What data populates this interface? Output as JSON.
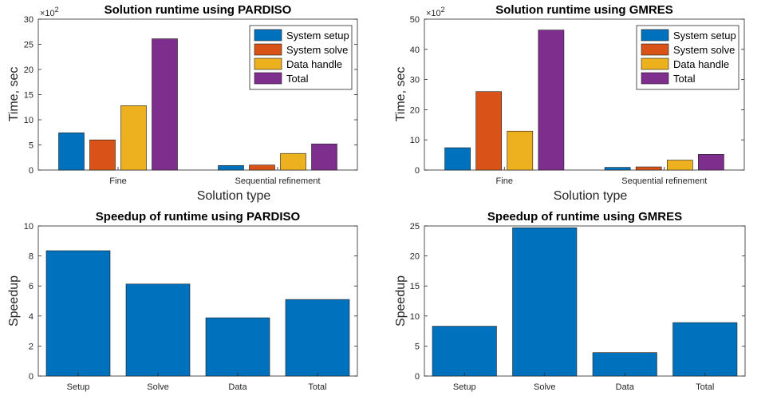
{
  "chart_data": [
    {
      "type": "bar",
      "title": "Solution runtime using PARDISO",
      "xlabel": "Solution type",
      "ylabel": "Time, sec",
      "y_multiplier": "×10",
      "y_multiplier_exp": "2",
      "ylim": [
        0,
        30
      ],
      "yticks": [
        "0",
        "5",
        "10",
        "15",
        "20",
        "25",
        "30"
      ],
      "grid": false,
      "legend_position": "top-right",
      "categories": [
        "Fine",
        "Sequential refinement"
      ],
      "series": [
        {
          "name": "System setup",
          "color": "#0072bd",
          "values": [
            7.4,
            0.9
          ]
        },
        {
          "name": "System solve",
          "color": "#d95319",
          "values": [
            6.0,
            1.0
          ]
        },
        {
          "name": "Data handle",
          "color": "#edb120",
          "values": [
            12.8,
            3.3
          ]
        },
        {
          "name": "Total",
          "color": "#7e2f8e",
          "values": [
            26.1,
            5.2
          ]
        }
      ]
    },
    {
      "type": "bar",
      "title": "Solution runtime using GMRES",
      "xlabel": "Solution type",
      "ylabel": "Time, sec",
      "y_multiplier": "×10",
      "y_multiplier_exp": "2",
      "ylim": [
        0,
        50
      ],
      "yticks": [
        "0",
        "10",
        "20",
        "30",
        "40",
        "50"
      ],
      "grid": false,
      "legend_position": "top-right",
      "categories": [
        "Fine",
        "Sequential refinement"
      ],
      "series": [
        {
          "name": "System setup",
          "color": "#0072bd",
          "values": [
            7.4,
            0.9
          ]
        },
        {
          "name": "System solve",
          "color": "#d95319",
          "values": [
            26.0,
            1.05
          ]
        },
        {
          "name": "Data handle",
          "color": "#edb120",
          "values": [
            12.9,
            3.3
          ]
        },
        {
          "name": "Total",
          "color": "#7e2f8e",
          "values": [
            46.4,
            5.2
          ]
        }
      ]
    },
    {
      "type": "bar",
      "title": "Speedup of runtime using PARDISO",
      "xlabel": "",
      "ylabel": "Speedup",
      "ylim": [
        0,
        10
      ],
      "yticks": [
        "0",
        "2",
        "4",
        "6",
        "8",
        "10"
      ],
      "grid": false,
      "categories": [
        "Setup",
        "Solve",
        "Data",
        "Total"
      ],
      "series": [
        {
          "name": "Speedup",
          "color": "#0072bd",
          "values": [
            8.35,
            6.13,
            3.88,
            5.1
          ]
        }
      ]
    },
    {
      "type": "bar",
      "title": "Speedup of runtime using GMRES",
      "xlabel": "",
      "ylabel": "Speedup",
      "ylim": [
        0,
        25
      ],
      "yticks": [
        "0",
        "5",
        "10",
        "15",
        "20",
        "25"
      ],
      "grid": false,
      "categories": [
        "Setup",
        "Solve",
        "Data",
        "Total"
      ],
      "series": [
        {
          "name": "Speedup",
          "color": "#0072bd",
          "values": [
            8.3,
            24.7,
            3.9,
            8.9
          ]
        }
      ]
    }
  ]
}
